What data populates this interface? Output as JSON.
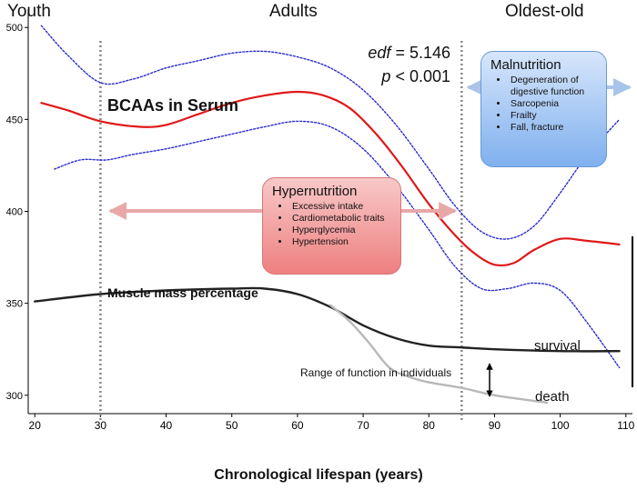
{
  "phases": {
    "youth": "Youth",
    "adults": "Adults",
    "oldest": "Oldest-old"
  },
  "stats": {
    "edf_label": "edf",
    "edf_value": " = 5.146",
    "p_label": "p",
    "p_value": " < 0.001"
  },
  "labels": {
    "bcaa": "BCAAs in Serum",
    "muscle": "Muscle mass percentage",
    "survival": "survival",
    "death": "death",
    "range": "Range of function in individuals"
  },
  "hypernutrition": {
    "title": "Hypernutrition",
    "items": [
      "Excessive intake",
      "Cardiometabolic traits",
      "Hyperglycemia",
      "Hypertension"
    ]
  },
  "malnutrition": {
    "title": "Malnutrition",
    "items": [
      "Degeneration of digestive function",
      "Sarcopenia",
      "Frailty",
      "Fall, fracture"
    ]
  },
  "colors": {
    "bcaa": "#e01818",
    "ci": "#2b2bcc",
    "survival": "#222222",
    "death": "#b8b8b8",
    "hyper_arrow": "#e8a8a8",
    "mal_arrow": "#a9c4e8",
    "vline": "#888888"
  },
  "chart_data": {
    "type": "line",
    "xlabel": "Chronological lifespan (years)",
    "ylabel": "",
    "xlim": [
      19,
      111
    ],
    "ylim": [
      290,
      510
    ],
    "xticks": [
      20,
      30,
      40,
      50,
      60,
      70,
      80,
      90,
      100,
      110
    ],
    "yticks": [
      300,
      350,
      400,
      450,
      500
    ],
    "vlines": [
      30,
      85
    ],
    "series": [
      {
        "name": "BCAAs in Serum",
        "x": [
          21,
          25,
          30,
          36,
          40,
          45,
          50,
          55,
          60,
          64,
          68,
          72,
          76,
          80,
          84,
          87,
          90,
          93,
          96,
          100,
          104,
          109
        ],
        "y": [
          459,
          455,
          449,
          446,
          447,
          453,
          459,
          463,
          465,
          463,
          456,
          442,
          424,
          404,
          387,
          377,
          371,
          372,
          379,
          385,
          384,
          382
        ]
      },
      {
        "name": "upper CI",
        "x": [
          21,
          25,
          30,
          35,
          40,
          45,
          50,
          55,
          60,
          65,
          70,
          75,
          80,
          84,
          88,
          92,
          96,
          100,
          104,
          109
        ],
        "y": [
          501,
          485,
          470,
          472,
          478,
          482,
          486,
          487,
          484,
          478,
          466,
          447,
          423,
          403,
          389,
          385,
          392,
          410,
          430,
          450
        ]
      },
      {
        "name": "lower CI",
        "x": [
          23,
          27,
          31,
          35,
          40,
          45,
          50,
          55,
          60,
          65,
          70,
          75,
          80,
          84,
          88,
          92,
          96,
          100,
          104,
          109
        ],
        "y": [
          423,
          428,
          428,
          431,
          434,
          438,
          442,
          446,
          449,
          446,
          434,
          414,
          390,
          370,
          358,
          358,
          361,
          357,
          340,
          315
        ]
      },
      {
        "name": "survival",
        "x": [
          20,
          30,
          40,
          50,
          55,
          60,
          65,
          70,
          75,
          80,
          85,
          90,
          100,
          109
        ],
        "y": [
          351,
          355,
          357,
          358,
          358,
          355,
          348,
          338,
          331,
          327,
          326,
          325,
          324,
          324
        ]
      },
      {
        "name": "death",
        "x": [
          65,
          68,
          71,
          74,
          77,
          80,
          85,
          90,
          98
        ],
        "y": [
          349,
          340,
          328,
          315,
          310,
          307,
          304,
          300,
          296
        ]
      }
    ]
  }
}
